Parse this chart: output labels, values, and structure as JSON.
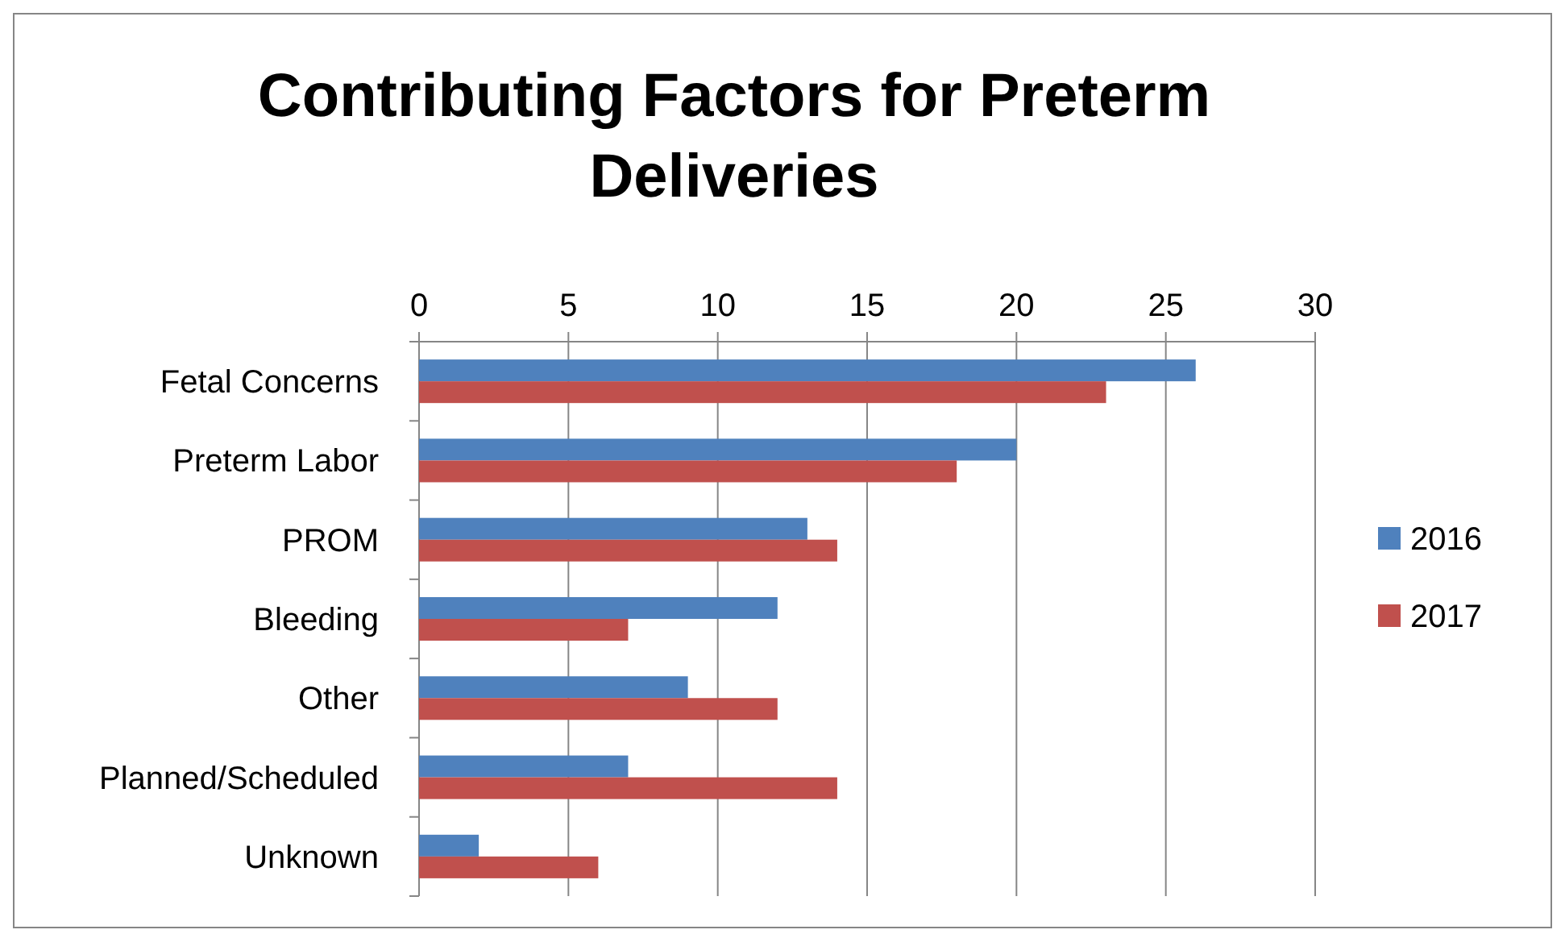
{
  "chart_data": {
    "type": "bar",
    "orientation": "horizontal",
    "title": "Contributing Factors for Preterm Deliveries",
    "categories": [
      "Fetal Concerns",
      "Preterm Labor",
      "PROM",
      "Bleeding",
      "Other",
      "Planned/Scheduled",
      "Unknown"
    ],
    "series": [
      {
        "name": "2016",
        "color": "#4f81bd",
        "values": [
          26,
          20,
          13,
          12,
          9,
          7,
          2
        ]
      },
      {
        "name": "2017",
        "color": "#c0504d",
        "values": [
          23,
          18,
          14,
          7,
          12,
          14,
          6
        ]
      }
    ],
    "xlim": [
      0,
      30
    ],
    "xticks": [
      0,
      5,
      10,
      15,
      20,
      25,
      30
    ],
    "grid": "x",
    "legend": "right"
  }
}
